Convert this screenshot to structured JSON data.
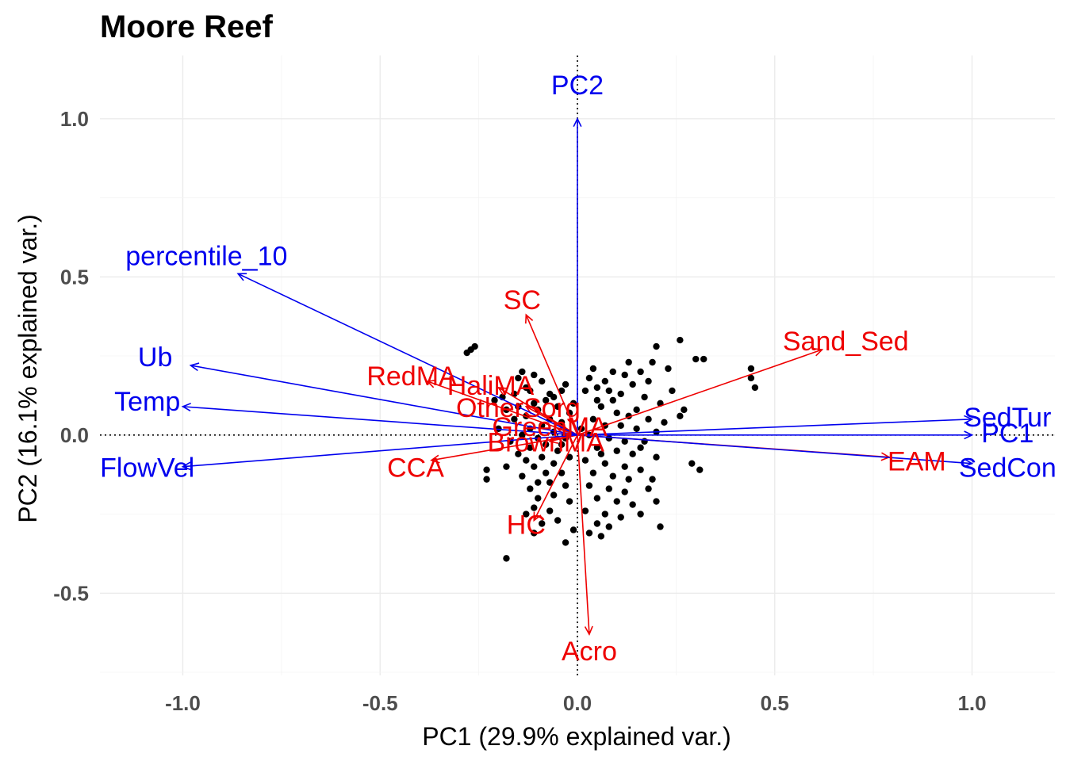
{
  "chart_data": {
    "type": "scatter",
    "title": "Moore Reef",
    "xlabel": "PC1 (29.9% explained var.)",
    "ylabel": "PC2 (16.1% explained var.)",
    "xlim": [
      -1.21,
      1.21
    ],
    "ylim": [
      -0.76,
      1.2
    ],
    "grid": true,
    "x_ticks": [
      {
        "value": -1.0,
        "label": "-1.0"
      },
      {
        "value": -0.5,
        "label": "-0.5"
      },
      {
        "value": 0.0,
        "label": "0.0"
      },
      {
        "value": 0.5,
        "label": "0.5"
      },
      {
        "value": 1.0,
        "label": "1.0"
      }
    ],
    "y_ticks": [
      {
        "value": -0.5,
        "label": "-0.5"
      },
      {
        "value": 0.0,
        "label": "0.0"
      },
      {
        "value": 0.5,
        "label": "0.5"
      },
      {
        "value": 1.0,
        "label": "1.0"
      }
    ],
    "colors": {
      "environment": "#0000ee",
      "benthic": "#ee0000",
      "points": "#000000"
    },
    "vectors_environment": [
      {
        "name": "PC2",
        "x": 0.0,
        "y": 1.0,
        "lx": 0.0,
        "ly": 1.1
      },
      {
        "name": "percentile_10",
        "x": -0.86,
        "y": 0.51,
        "lx": -0.94,
        "ly": 0.56
      },
      {
        "name": "Ub",
        "x": -0.98,
        "y": 0.22,
        "lx": -1.07,
        "ly": 0.24
      },
      {
        "name": "Temp",
        "x": -1.0,
        "y": 0.09,
        "lx": -1.09,
        "ly": 0.1
      },
      {
        "name": "FlowVel",
        "x": -1.0,
        "y": -0.1,
        "lx": -1.09,
        "ly": -0.11
      },
      {
        "name": "SedTur",
        "x": 1.0,
        "y": 0.05,
        "lx": 1.09,
        "ly": 0.05
      },
      {
        "name": "PC1",
        "x": 1.0,
        "y": 0.0,
        "lx": 1.09,
        "ly": 0.0
      },
      {
        "name": "SedCon",
        "x": 1.0,
        "y": -0.09,
        "lx": 1.09,
        "ly": -0.11
      }
    ],
    "vectors_benthic": [
      {
        "name": "SC",
        "x": -0.13,
        "y": 0.38,
        "lx": -0.14,
        "ly": 0.42
      },
      {
        "name": "Sand_Sed",
        "x": 0.62,
        "y": 0.27,
        "lx": 0.68,
        "ly": 0.29
      },
      {
        "name": "RedMA",
        "x": -0.38,
        "y": 0.17,
        "lx": -0.42,
        "ly": 0.18
      },
      {
        "name": "HaliMA",
        "x": -0.2,
        "y": 0.15,
        "lx": -0.22,
        "ly": 0.15
      },
      {
        "name": "OtherSorg",
        "x": -0.13,
        "y": 0.09,
        "lx": -0.15,
        "ly": 0.08
      },
      {
        "name": "GreenMA",
        "x": -0.05,
        "y": 0.02,
        "lx": -0.07,
        "ly": 0.02
      },
      {
        "name": "BrownMA",
        "x": -0.07,
        "y": -0.02,
        "lx": -0.08,
        "ly": -0.03
      },
      {
        "name": "EAM",
        "x": 0.79,
        "y": -0.07,
        "lx": 0.86,
        "ly": -0.09
      },
      {
        "name": "CCA",
        "x": -0.37,
        "y": -0.08,
        "lx": -0.41,
        "ly": -0.11
      },
      {
        "name": "HC",
        "x": -0.11,
        "y": -0.27,
        "lx": -0.13,
        "ly": -0.29
      },
      {
        "name": "Acro",
        "x": 0.03,
        "y": -0.63,
        "lx": 0.03,
        "ly": -0.69
      }
    ],
    "points": [
      [
        -0.26,
        0.28
      ],
      [
        -0.27,
        0.27
      ],
      [
        -0.28,
        0.26
      ],
      [
        -0.14,
        0.2
      ],
      [
        -0.11,
        0.19
      ],
      [
        -0.15,
        0.18
      ],
      [
        -0.09,
        0.17
      ],
      [
        -0.03,
        0.16
      ],
      [
        -0.13,
        0.15
      ],
      [
        -0.12,
        0.14
      ],
      [
        -0.07,
        0.13
      ],
      [
        -0.04,
        0.14
      ],
      [
        -0.16,
        0.13
      ],
      [
        -0.19,
        0.12
      ],
      [
        -0.21,
        0.11
      ],
      [
        -0.08,
        0.11
      ],
      [
        -0.01,
        0.1
      ],
      [
        -0.11,
        0.1
      ],
      [
        -0.15,
        0.09
      ],
      [
        -0.05,
        0.09
      ],
      [
        -0.18,
        0.08
      ],
      [
        -0.1,
        0.08
      ],
      [
        -0.02,
        0.07
      ],
      [
        -0.13,
        0.06
      ],
      [
        -0.07,
        0.05
      ],
      [
        -0.16,
        0.05
      ],
      [
        -0.04,
        0.04
      ],
      [
        -0.09,
        0.03
      ],
      [
        -0.12,
        0.02
      ],
      [
        -0.2,
        0.02
      ],
      [
        -0.06,
        0.01
      ],
      [
        -0.14,
        0.0
      ],
      [
        -0.1,
        -0.01
      ],
      [
        -0.03,
        -0.01
      ],
      [
        -0.17,
        -0.02
      ],
      [
        -0.08,
        -0.03
      ],
      [
        -0.12,
        -0.04
      ],
      [
        -0.05,
        -0.05
      ],
      [
        -0.15,
        -0.06
      ],
      [
        -0.09,
        -0.07
      ],
      [
        -0.02,
        -0.07
      ],
      [
        -0.13,
        -0.08
      ],
      [
        -0.06,
        -0.09
      ],
      [
        -0.11,
        -0.1
      ],
      [
        -0.18,
        -0.1
      ],
      [
        -0.08,
        -0.12
      ],
      [
        -0.04,
        -0.12
      ],
      [
        -0.14,
        -0.13
      ],
      [
        -0.1,
        -0.15
      ],
      [
        -0.23,
        -0.11
      ],
      [
        -0.23,
        -0.14
      ],
      [
        -0.07,
        -0.15
      ],
      [
        -0.03,
        -0.16
      ],
      [
        -0.12,
        -0.17
      ],
      [
        -0.06,
        -0.19
      ],
      [
        -0.1,
        -0.2
      ],
      [
        -0.02,
        -0.21
      ],
      [
        -0.11,
        -0.23
      ],
      [
        -0.07,
        -0.24
      ],
      [
        -0.13,
        -0.25
      ],
      [
        -0.05,
        -0.27
      ],
      [
        -0.09,
        -0.28
      ],
      [
        -0.01,
        -0.3
      ],
      [
        -0.11,
        -0.31
      ],
      [
        -0.03,
        -0.34
      ],
      [
        -0.18,
        -0.39
      ],
      [
        -0.06,
        0.12
      ],
      [
        -0.04,
        -0.03
      ],
      [
        0.02,
        0.14
      ],
      [
        0.05,
        0.15
      ],
      [
        0.08,
        0.14
      ],
      [
        0.11,
        0.13
      ],
      [
        0.14,
        0.16
      ],
      [
        0.12,
        0.19
      ],
      [
        0.16,
        0.2
      ],
      [
        0.19,
        0.23
      ],
      [
        0.2,
        0.28
      ],
      [
        0.26,
        0.3
      ],
      [
        0.23,
        0.21
      ],
      [
        0.3,
        0.24
      ],
      [
        0.32,
        0.24
      ],
      [
        0.18,
        0.17
      ],
      [
        0.09,
        0.2
      ],
      [
        0.04,
        0.21
      ],
      [
        0.13,
        0.23
      ],
      [
        0.17,
        0.12
      ],
      [
        0.21,
        0.1
      ],
      [
        0.24,
        0.14
      ],
      [
        0.27,
        0.08
      ],
      [
        0.15,
        0.08
      ],
      [
        0.06,
        0.09
      ],
      [
        0.1,
        0.07
      ],
      [
        0.13,
        0.06
      ],
      [
        0.18,
        0.05
      ],
      [
        0.04,
        0.05
      ],
      [
        0.07,
        0.03
      ],
      [
        0.22,
        0.04
      ],
      [
        0.26,
        0.06
      ],
      [
        0.03,
        0.0
      ],
      [
        0.08,
        -0.01
      ],
      [
        0.12,
        -0.02
      ],
      [
        0.17,
        -0.02
      ],
      [
        0.05,
        -0.04
      ],
      [
        0.1,
        -0.05
      ],
      [
        0.14,
        -0.06
      ],
      [
        0.2,
        -0.07
      ],
      [
        0.02,
        -0.08
      ],
      [
        0.07,
        -0.09
      ],
      [
        0.12,
        -0.1
      ],
      [
        0.16,
        -0.11
      ],
      [
        0.04,
        -0.12
      ],
      [
        0.09,
        -0.13
      ],
      [
        0.13,
        -0.14
      ],
      [
        0.19,
        -0.14
      ],
      [
        0.03,
        -0.16
      ],
      [
        0.08,
        -0.17
      ],
      [
        0.12,
        -0.18
      ],
      [
        0.18,
        -0.17
      ],
      [
        0.2,
        -0.21
      ],
      [
        0.05,
        -0.2
      ],
      [
        0.1,
        -0.21
      ],
      [
        0.14,
        -0.22
      ],
      [
        0.02,
        -0.24
      ],
      [
        0.07,
        -0.25
      ],
      [
        0.11,
        -0.26
      ],
      [
        0.16,
        -0.25
      ],
      [
        0.05,
        -0.28
      ],
      [
        0.08,
        -0.29
      ],
      [
        0.03,
        -0.31
      ],
      [
        0.06,
        -0.32
      ],
      [
        0.21,
        -0.29
      ],
      [
        0.29,
        -0.09
      ],
      [
        0.31,
        -0.11
      ],
      [
        0.44,
        0.21
      ],
      [
        0.44,
        0.18
      ],
      [
        0.45,
        0.15
      ],
      [
        0.05,
        0.11
      ],
      [
        0.09,
        0.11
      ],
      [
        0.15,
        0.02
      ],
      [
        0.01,
        0.02
      ],
      [
        0.2,
        0.01
      ],
      [
        0.06,
        -0.06
      ],
      [
        0.16,
        -0.04
      ],
      [
        0.11,
        0.03
      ],
      [
        0.07,
        0.17
      ],
      [
        0.03,
        0.18
      ]
    ]
  }
}
